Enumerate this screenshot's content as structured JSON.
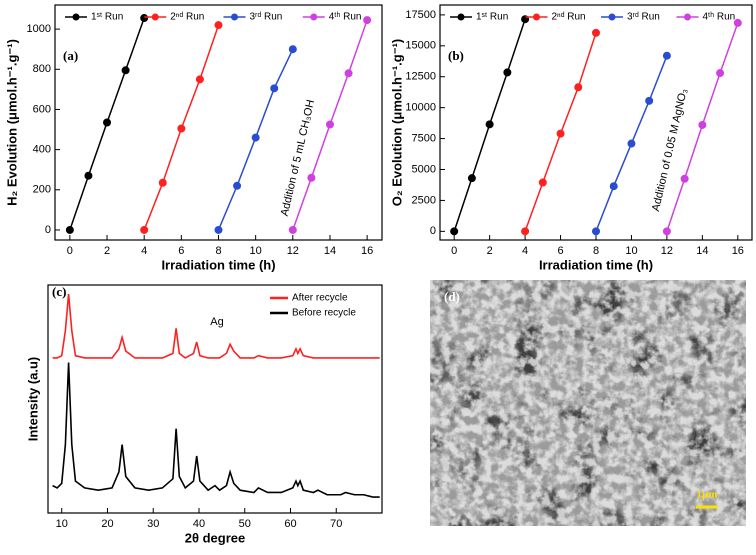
{
  "chart_data": [
    {
      "type": "line",
      "panel_label": "(a)",
      "x_label": "Irradiation time (h)",
      "y_label": "H₂ Evolution (μmol.h⁻¹.g⁻¹)",
      "annotation": "Addition of 5 mL CH₃OH",
      "markers": true,
      "legend": "top",
      "xlim": [
        -0.8,
        16.8
      ],
      "xticks": [
        0,
        2,
        4,
        6,
        8,
        10,
        12,
        14,
        16
      ],
      "ylim": [
        -50,
        1120
      ],
      "yticks": [
        0,
        200,
        400,
        600,
        800,
        1000
      ],
      "series": [
        {
          "name": "1ˢᵗ Run",
          "color": "#000000",
          "x": [
            0,
            1,
            2,
            3,
            4
          ],
          "values": [
            0,
            270,
            535,
            795,
            1055
          ]
        },
        {
          "name": "2ⁿᵈ Run",
          "color": "#ff2020",
          "x": [
            4,
            5,
            6,
            7,
            8
          ],
          "values": [
            0,
            235,
            505,
            750,
            1020
          ]
        },
        {
          "name": "3ʳᵈ Run",
          "color": "#2a4dd0",
          "x": [
            8,
            9,
            10,
            11,
            12
          ],
          "values": [
            0,
            220,
            460,
            705,
            900
          ]
        },
        {
          "name": "4ᵗʰ Run",
          "color": "#d040e0",
          "x": [
            12,
            13,
            14,
            15,
            16
          ],
          "values": [
            0,
            260,
            525,
            780,
            1045
          ]
        }
      ]
    },
    {
      "type": "line",
      "panel_label": "(b)",
      "x_label": "Irradiation time (h)",
      "y_label": "O₂ Evolution (μmol.h⁻¹.g⁻¹)",
      "annotation": "Addition of 0.05 M AgNO₃",
      "markers": true,
      "legend": "top",
      "xlim": [
        -0.8,
        16.8
      ],
      "xticks": [
        0,
        2,
        4,
        6,
        8,
        10,
        12,
        14,
        16
      ],
      "ylim": [
        -700,
        18300
      ],
      "yticks": [
        0,
        2500,
        5000,
        7500,
        10000,
        12500,
        15000,
        17500
      ],
      "series": [
        {
          "name": "1ˢᵗ Run",
          "color": "#000000",
          "x": [
            0,
            1,
            2,
            3,
            4
          ],
          "values": [
            0,
            4300,
            8650,
            12850,
            17150
          ]
        },
        {
          "name": "2ⁿᵈ Run",
          "color": "#ff2020",
          "x": [
            4,
            5,
            6,
            7,
            8
          ],
          "values": [
            0,
            3950,
            7900,
            11650,
            16050
          ]
        },
        {
          "name": "3ʳᵈ Run",
          "color": "#2a4dd0",
          "x": [
            8,
            9,
            10,
            11,
            12
          ],
          "values": [
            0,
            3650,
            7100,
            10550,
            14200
          ]
        },
        {
          "name": "4ᵗʰ Run",
          "color": "#d040e0",
          "x": [
            12,
            13,
            14,
            15,
            16
          ],
          "values": [
            0,
            4250,
            8600,
            12800,
            16850
          ]
        }
      ]
    },
    {
      "type": "line",
      "panel_label": "(c)",
      "x_label": "2θ degree",
      "y_label": "Intensity (a.u)",
      "annotation": "Ag",
      "markers": false,
      "legend": "upper right",
      "xlim": [
        7,
        80
      ],
      "xticks": [
        10,
        20,
        30,
        40,
        50,
        60,
        70
      ],
      "ylim": [
        0,
        100
      ],
      "x": [
        8,
        9,
        10,
        10.8,
        11.5,
        12.2,
        13,
        15,
        18,
        21,
        22.5,
        23.2,
        24,
        26,
        29,
        32,
        34.3,
        35,
        35.7,
        37,
        38.8,
        39.5,
        40.2,
        42,
        43.5,
        44.5,
        46,
        46.8,
        47.6,
        49,
        52,
        53,
        55,
        58,
        60.5,
        61.2,
        61.6,
        62.1,
        62.8,
        65,
        66,
        68,
        71,
        72,
        74,
        76,
        78,
        79.5
      ],
      "series": [
        {
          "name": "After recycle",
          "color": "#ff2020",
          "values": [
            68,
            68,
            69,
            80,
            96,
            80,
            69,
            68,
            68,
            68,
            72,
            77,
            71,
            68,
            68,
            68,
            70,
            81,
            70,
            68,
            70,
            75,
            69,
            68,
            68,
            68,
            70,
            74,
            71,
            68,
            68,
            69,
            68,
            68,
            69,
            72,
            70,
            72,
            69,
            68,
            68,
            68,
            68,
            68,
            68,
            68,
            68,
            68
          ]
        },
        {
          "name": "Before recycle",
          "color": "#000000",
          "values": [
            12,
            11,
            13,
            30,
            66,
            30,
            14,
            11,
            10,
            11,
            18,
            30,
            16,
            11,
            10,
            11,
            15,
            37,
            16,
            11,
            14,
            25,
            14,
            10,
            12,
            10,
            12,
            18,
            13,
            10,
            9,
            11,
            9,
            9,
            11,
            14,
            12,
            14,
            10,
            9,
            10,
            8,
            8,
            9,
            8,
            8,
            7,
            7
          ]
        }
      ]
    }
  ],
  "image_panel": {
    "label": "(d)",
    "scale_bar": "1μm"
  }
}
